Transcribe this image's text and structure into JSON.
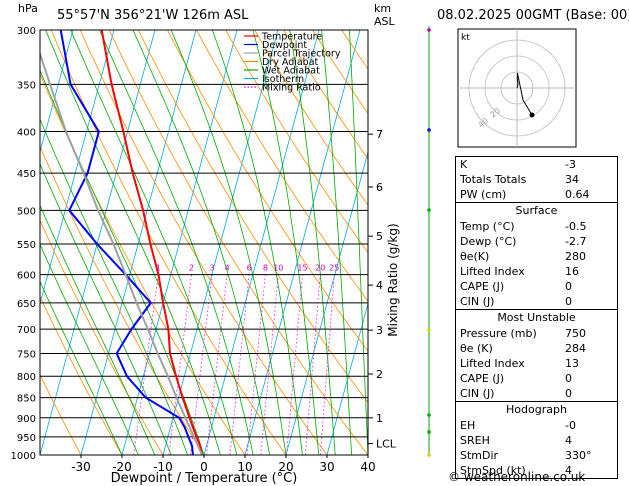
{
  "header": {
    "hpa_label": "hPa",
    "location": "55°57'N  356°21'W  126m  ASL",
    "km_label": "km",
    "asl_label": "ASL",
    "date": "08.02.2025  00GMT  (Base: 00)"
  },
  "chart_data": {
    "type": "line",
    "title": "",
    "xlabel": "Dewpoint / Temperature (°C)",
    "ylabel": "Mixing Ratio (g/kg)",
    "x_range": [
      -40,
      40
    ],
    "x_ticks": [
      -30,
      -20,
      -10,
      0,
      10,
      20,
      30,
      40
    ],
    "pressure_range": [
      1000,
      300
    ],
    "pressure_ticks": [
      300,
      350,
      400,
      450,
      500,
      550,
      600,
      650,
      700,
      750,
      800,
      850,
      900,
      950,
      1000
    ],
    "pressure_scale": "log",
    "skew": true,
    "km_ticks": [
      {
        "label": "7",
        "pressure": 403
      },
      {
        "label": "6",
        "pressure": 468
      },
      {
        "label": "5",
        "pressure": 538
      },
      {
        "label": "4",
        "pressure": 618
      },
      {
        "label": "3",
        "pressure": 702
      },
      {
        "label": "2",
        "pressure": 795
      },
      {
        "label": "1",
        "pressure": 900
      },
      {
        "label": "LCL",
        "pressure": 968
      }
    ],
    "mixing_ratio_labels": [
      "1",
      "2",
      "3",
      "4",
      "6",
      "8",
      "10",
      "15",
      "20",
      "25"
    ],
    "legend": {
      "placement": "top-left",
      "entries": [
        {
          "name": "Temperature",
          "color": "#ff0000"
        },
        {
          "name": "Dewpoint",
          "color": "#0000ff"
        },
        {
          "name": "Parcel Trajectory",
          "color": "#a0a0a0"
        },
        {
          "name": "Dry Adiabat",
          "color": "#ff8c00"
        },
        {
          "name": "Wet Adiabat",
          "color": "#00aa00"
        },
        {
          "name": "Isotherm",
          "color": "#00aadd"
        },
        {
          "name": "Mixing Ratio",
          "color": "#ff00ff"
        }
      ]
    },
    "series": [
      {
        "name": "Temperature",
        "color": "#ff0000",
        "points": [
          [
            1000,
            -0.5
          ],
          [
            975,
            -1.5
          ],
          [
            950,
            -3
          ],
          [
            925,
            -4.5
          ],
          [
            900,
            -6
          ],
          [
            850,
            -9
          ],
          [
            800,
            -12
          ],
          [
            750,
            -15
          ],
          [
            700,
            -17
          ],
          [
            650,
            -20
          ],
          [
            600,
            -23
          ],
          [
            550,
            -27
          ],
          [
            500,
            -31
          ],
          [
            450,
            -36
          ],
          [
            400,
            -41
          ],
          [
            350,
            -47
          ],
          [
            300,
            -53
          ]
        ]
      },
      {
        "name": "Dewpoint",
        "color": "#0000ff",
        "points": [
          [
            1000,
            -2.7
          ],
          [
            975,
            -3.5
          ],
          [
            950,
            -5
          ],
          [
            925,
            -6.5
          ],
          [
            900,
            -8.5
          ],
          [
            850,
            -18
          ],
          [
            800,
            -24
          ],
          [
            750,
            -28
          ],
          [
            700,
            -26
          ],
          [
            650,
            -23
          ],
          [
            600,
            -31
          ],
          [
            550,
            -40
          ],
          [
            500,
            -49
          ],
          [
            450,
            -47
          ],
          [
            400,
            -47
          ],
          [
            350,
            -57
          ],
          [
            300,
            -63
          ]
        ]
      },
      {
        "name": "Parcel Trajectory",
        "color": "#a0a0a0",
        "points": [
          [
            1000,
            -0.5
          ],
          [
            968,
            -2.5
          ],
          [
            900,
            -7
          ],
          [
            850,
            -10.5
          ],
          [
            800,
            -14
          ],
          [
            750,
            -18
          ],
          [
            700,
            -22
          ],
          [
            650,
            -26.5
          ],
          [
            600,
            -31
          ],
          [
            550,
            -36
          ],
          [
            500,
            -42
          ],
          [
            450,
            -48
          ],
          [
            400,
            -55
          ],
          [
            350,
            -62
          ],
          [
            300,
            -70
          ]
        ]
      }
    ],
    "hodograph": {
      "label": "kt",
      "ring_labels": [
        "20",
        "40"
      ],
      "points": [
        [
          0,
          0
        ],
        [
          0.5,
          1.5
        ],
        [
          0.6,
          3
        ],
        [
          0.2,
          6
        ],
        [
          0.3,
          10
        ],
        [
          4,
          -8
        ],
        [
          10,
          -18
        ]
      ]
    }
  },
  "stability": [
    {
      "label": "K",
      "value": "-3"
    },
    {
      "label": "Totals Totals",
      "value": "34"
    },
    {
      "label": "PW (cm)",
      "value": "0.64"
    }
  ],
  "surface": {
    "title": "Surface",
    "rows": [
      {
        "label": "Temp (°C)",
        "value": "-0.5"
      },
      {
        "label": "Dewp (°C)",
        "value": "-2.7"
      },
      {
        "label": "θe(K)",
        "value": "280"
      },
      {
        "label": "Lifted Index",
        "value": "16"
      },
      {
        "label": "CAPE (J)",
        "value": "0"
      },
      {
        "label": "CIN (J)",
        "value": "0"
      }
    ]
  },
  "most_unstable": {
    "title": "Most Unstable",
    "rows": [
      {
        "label": "Pressure (mb)",
        "value": "750"
      },
      {
        "label": "θe (K)",
        "value": "284"
      },
      {
        "label": "Lifted Index",
        "value": "13"
      },
      {
        "label": "CAPE (J)",
        "value": "0"
      },
      {
        "label": "CIN (J)",
        "value": "0"
      }
    ]
  },
  "hodograph_table": {
    "title": "Hodograph",
    "rows": [
      {
        "label": "EH",
        "value": "-0"
      },
      {
        "label": "SREH",
        "value": "4"
      },
      {
        "label": "StmDir",
        "value": "330°"
      },
      {
        "label": "StmSpd (kt)",
        "value": "4"
      }
    ]
  },
  "copyright": "© weatheronline.co.uk"
}
